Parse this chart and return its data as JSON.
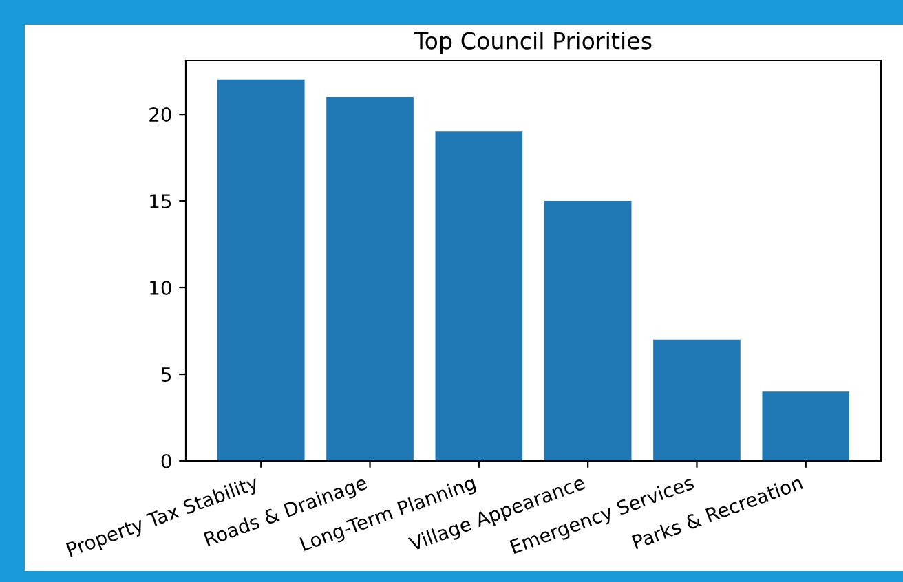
{
  "chart_data": {
    "type": "bar",
    "title": "Top Council Priorities",
    "categories": [
      "Property Tax Stability",
      "Roads & Drainage",
      "Long-Term Planning",
      "Village Appearance",
      "Emergency Services",
      "Parks & Recreation"
    ],
    "values": [
      22,
      21,
      19,
      15,
      7,
      4
    ],
    "color": "#1f77b4",
    "ylim": [
      0,
      23.1
    ],
    "yticks": [
      0,
      5,
      10,
      15,
      20
    ],
    "grid": false,
    "legend": false
  }
}
